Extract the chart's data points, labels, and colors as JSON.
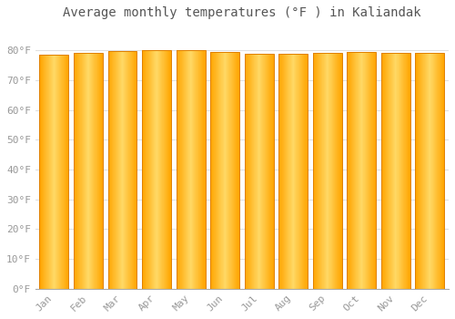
{
  "title": "Average monthly temperatures (°F ) in Kaliandak",
  "months": [
    "Jan",
    "Feb",
    "Mar",
    "Apr",
    "May",
    "Jun",
    "Jul",
    "Aug",
    "Sep",
    "Oct",
    "Nov",
    "Dec"
  ],
  "values": [
    78.4,
    79.2,
    79.7,
    80.1,
    80.2,
    79.5,
    78.8,
    78.9,
    79.1,
    79.5,
    79.3,
    79.0
  ],
  "bar_color_center": "#FFD966",
  "bar_color_edge": "#FFA500",
  "ylim": [
    0,
    88
  ],
  "yticks": [
    0,
    10,
    20,
    30,
    40,
    50,
    60,
    70,
    80
  ],
  "ytick_labels": [
    "0°F",
    "10°F",
    "20°F",
    "30°F",
    "40°F",
    "50°F",
    "60°F",
    "70°F",
    "80°F"
  ],
  "background_color": "#FFFFFF",
  "grid_color": "#E0E0E0",
  "title_fontsize": 10,
  "tick_fontsize": 8,
  "title_color": "#555555",
  "tick_color": "#999999",
  "bar_width": 0.85
}
